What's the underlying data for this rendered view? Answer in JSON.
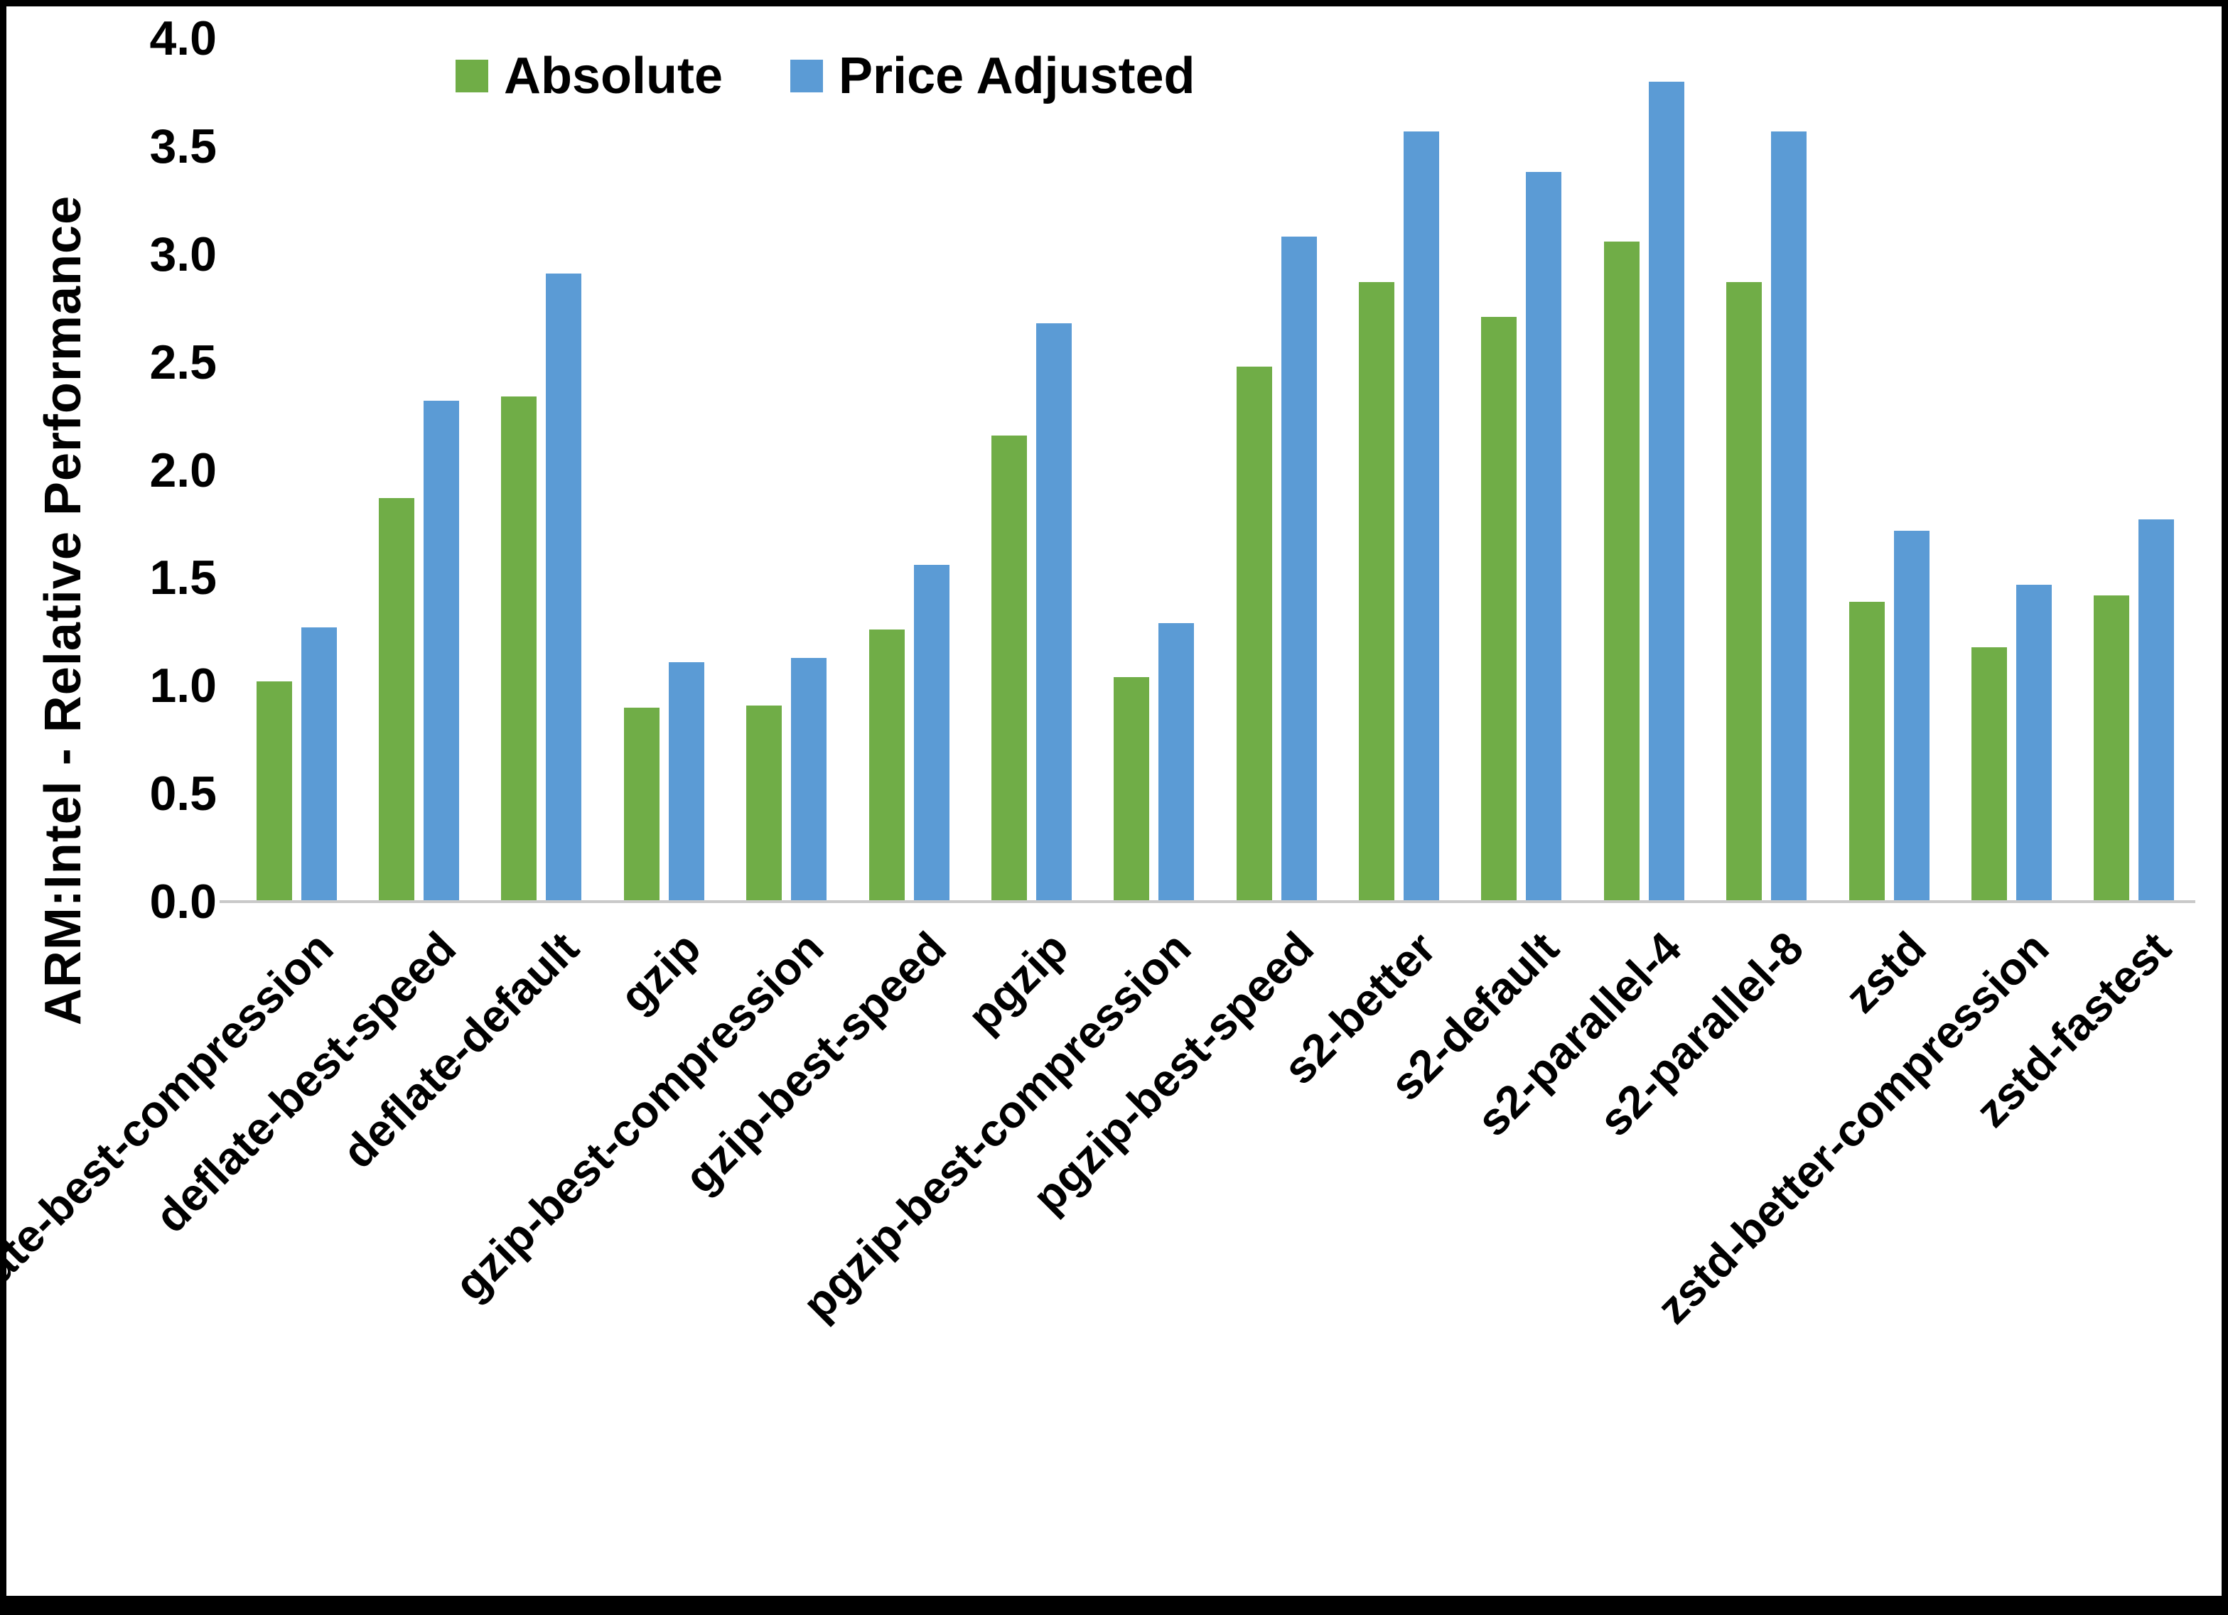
{
  "frame": {
    "background": "#ffffff",
    "border_color": "#000000",
    "axis_line_color": "#c9c9c9"
  },
  "chart_data": {
    "type": "bar",
    "title": "",
    "xlabel": "",
    "ylabel": "ARM:Intel - Relative Performance",
    "ylim": [
      0,
      4.0
    ],
    "ytick_labels": [
      "4.0",
      "3.5",
      "3.0",
      "2.5",
      "2.0",
      "1.5",
      "1.0",
      "0.5",
      "0.0"
    ],
    "grid": false,
    "legend_position": "top-center-inside",
    "categories": [
      "deflate-best-compression",
      "deflate-best-speed",
      "deflate-default",
      "gzip",
      "gzip-best-compression",
      "gzip-best-speed",
      "pgzip",
      "pgzip-best-compression",
      "pgzip-best-speed",
      "s2-better",
      "s2-default",
      "s2-parallel-4",
      "s2-parallel-8",
      "zstd",
      "zstd-better-compression",
      "zstd-fastest"
    ],
    "series": [
      {
        "name": "Absolute",
        "color": "#70AD47",
        "values": [
          1.02,
          1.87,
          2.34,
          0.9,
          0.91,
          1.26,
          2.16,
          1.04,
          2.48,
          2.87,
          2.71,
          3.06,
          2.87,
          1.39,
          1.18,
          1.42
        ]
      },
      {
        "name": "Price Adjusted",
        "color": "#5B9BD5",
        "values": [
          1.27,
          2.32,
          2.91,
          1.11,
          1.13,
          1.56,
          2.68,
          1.29,
          3.08,
          3.57,
          3.38,
          3.8,
          3.57,
          1.72,
          1.47,
          1.77
        ]
      }
    ]
  }
}
